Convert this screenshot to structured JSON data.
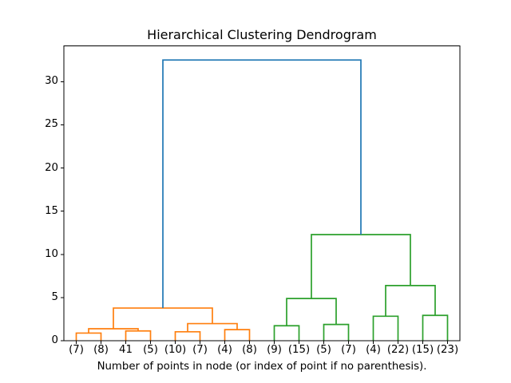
{
  "chart_data": {
    "type": "dendrogram",
    "title": "Hierarchical Clustering Dendrogram",
    "xlabel": "Number of points in node (or index of point if no parenthesis).",
    "ylim": [
      0,
      34.125
    ],
    "yticks": [
      0,
      5,
      10,
      15,
      20,
      25,
      30
    ],
    "leaf_labels": [
      "(7)",
      "(8)",
      "41",
      "(5)",
      "(10)",
      "(7)",
      "(4)",
      "(8)",
      "(9)",
      "(15)",
      "(5)",
      "(7)",
      "(4)",
      "(22)",
      "(15)",
      "(23)"
    ],
    "colors": {
      "blue": "#1f77b4",
      "orange": "#ff7f0e",
      "green": "#2ca02c",
      "axis": "#000000"
    },
    "links": [
      {
        "id": "m0",
        "left": "L0",
        "right": "L1",
        "height": 0.9,
        "color": "orange"
      },
      {
        "id": "m1",
        "left": "L2",
        "right": "L3",
        "height": 1.15,
        "color": "orange"
      },
      {
        "id": "m2",
        "left": "m0",
        "right": "m1",
        "height": 1.4,
        "color": "orange"
      },
      {
        "id": "m3",
        "left": "L4",
        "right": "L5",
        "height": 1.05,
        "color": "orange"
      },
      {
        "id": "m4",
        "left": "L6",
        "right": "L7",
        "height": 1.3,
        "color": "orange"
      },
      {
        "id": "m5",
        "left": "m3",
        "right": "m4",
        "height": 2.0,
        "color": "orange"
      },
      {
        "id": "m6",
        "left": "m2",
        "right": "m5",
        "height": 3.8,
        "color": "orange"
      },
      {
        "id": "m7",
        "left": "L8",
        "right": "L9",
        "height": 1.75,
        "color": "green"
      },
      {
        "id": "m8",
        "left": "L10",
        "right": "L11",
        "height": 1.9,
        "color": "green"
      },
      {
        "id": "m9",
        "left": "m7",
        "right": "m8",
        "height": 4.9,
        "color": "green"
      },
      {
        "id": "m10",
        "left": "L12",
        "right": "L13",
        "height": 2.85,
        "color": "green"
      },
      {
        "id": "m11",
        "left": "L14",
        "right": "L15",
        "height": 2.95,
        "color": "green"
      },
      {
        "id": "m12",
        "left": "m10",
        "right": "m11",
        "height": 6.4,
        "color": "green"
      },
      {
        "id": "m13",
        "left": "m9",
        "right": "m12",
        "height": 12.3,
        "color": "green"
      },
      {
        "id": "m14",
        "left": "m6",
        "right": "m13",
        "height": 32.5,
        "color": "blue"
      }
    ]
  }
}
